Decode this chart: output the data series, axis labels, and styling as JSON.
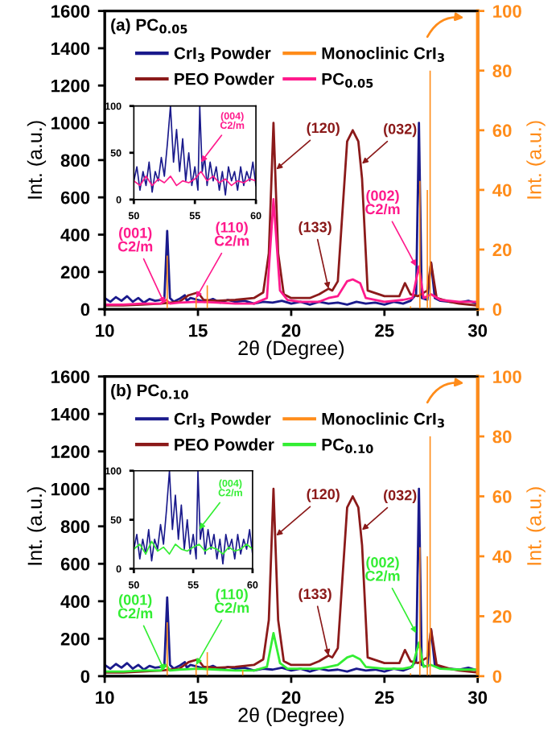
{
  "chart_data": [
    {
      "type": "line",
      "title": "(a) PC$_{0.05}$",
      "xlabel": "2θ (Degree)",
      "ylabel": "Int. (a.u.)",
      "y2label": "Int. (a.u.)",
      "xlim": [
        10,
        30
      ],
      "xticks": [
        10,
        15,
        20,
        25,
        30
      ],
      "ylim": [
        0,
        1600
      ],
      "yticks": [
        0,
        200,
        400,
        600,
        800,
        1000,
        1200,
        1400,
        1600
      ],
      "y2lim": [
        0,
        100
      ],
      "y2ticks": [
        0,
        20,
        40,
        60,
        80,
        100
      ],
      "legend": "top",
      "series": [
        {
          "name": "CrI$_{3}$ Powder",
          "color": "#1a1a8c",
          "x": [
            10,
            10.3,
            10.6,
            10.9,
            11.2,
            11.5,
            11.8,
            12.1,
            12.4,
            12.7,
            13.0,
            13.2,
            13.35,
            13.5,
            13.7,
            14.0,
            14.3,
            14.4,
            14.6,
            15.0,
            15.4,
            15.8,
            16.2,
            16.6,
            17.0,
            17.5,
            18,
            18.5,
            19,
            19.5,
            20,
            20.5,
            21,
            21.5,
            22,
            22.5,
            23,
            23.5,
            24,
            24.5,
            25,
            25.5,
            26,
            26.4,
            26.7,
            26.85,
            27.0,
            27.3,
            27.5,
            27.7,
            28,
            28.5,
            29,
            29.5,
            30
          ],
          "values": [
            60,
            40,
            65,
            45,
            70,
            40,
            60,
            35,
            55,
            45,
            50,
            60,
            420,
            60,
            40,
            55,
            75,
            45,
            60,
            50,
            40,
            55,
            35,
            50,
            40,
            45,
            30,
            40,
            35,
            45,
            30,
            40,
            25,
            40,
            30,
            35,
            25,
            40,
            30,
            35,
            25,
            40,
            30,
            45,
            80,
            1000,
            60,
            50,
            250,
            60,
            45,
            40,
            35,
            45,
            30
          ]
        },
        {
          "name": "Monoclinic CrI$_{3}$",
          "type": "bar",
          "axis": "y2",
          "color": "#ff8c1a",
          "x": [
            13.35,
            14.9,
            15.5,
            17.4,
            26.4,
            26.9,
            27.3,
            27.45
          ],
          "values": [
            18,
            4,
            8,
            null,
            1,
            43,
            40,
            80
          ]
        },
        {
          "name": "PEO Powder",
          "color": "#8b1a1a",
          "x": [
            10,
            11,
            12,
            13,
            14,
            14.5,
            15,
            15.3,
            16,
            17,
            18,
            18.5,
            18.8,
            19.05,
            19.3,
            19.6,
            20,
            21,
            21.5,
            22,
            22.2,
            22.5,
            22.8,
            23.0,
            23.3,
            23.6,
            23.8,
            24.1,
            25,
            25.8,
            26.1,
            26.4,
            26.8,
            27.3,
            27.5,
            27.8,
            28.5,
            29,
            30
          ],
          "values": [
            20,
            20,
            25,
            30,
            40,
            75,
            90,
            50,
            45,
            50,
            60,
            90,
            300,
            1000,
            300,
            80,
            60,
            60,
            80,
            110,
            100,
            150,
            600,
            900,
            960,
            900,
            700,
            100,
            70,
            70,
            140,
            80,
            70,
            100,
            250,
            60,
            40,
            30,
            20
          ]
        },
        {
          "name": "PC$_{0.05}$",
          "color": "#ff1a8c",
          "x": [
            10,
            11,
            12,
            13,
            13.3,
            13.5,
            14,
            15,
            16,
            17,
            18,
            18.7,
            19.05,
            19.4,
            19.8,
            20.5,
            21.5,
            22,
            22.5,
            23,
            23.3,
            23.7,
            24,
            25,
            26,
            26.5,
            26.85,
            27.1,
            27.5,
            28,
            29,
            30
          ],
          "values": [
            25,
            25,
            30,
            30,
            50,
            30,
            35,
            40,
            35,
            30,
            30,
            60,
            590,
            100,
            50,
            40,
            40,
            60,
            70,
            150,
            160,
            140,
            60,
            40,
            50,
            60,
            230,
            60,
            80,
            50,
            40,
            40
          ]
        }
      ],
      "annotations": [
        {
          "text": "(001)\nC2/m",
          "x": 13.2,
          "y": 30
        },
        {
          "text": "(110)\nC2/m",
          "x": 14.9,
          "y": 60
        },
        {
          "text": "(120)",
          "x": 19.2,
          "y": 750
        },
        {
          "text": "(133)",
          "x": 22,
          "y": 110
        },
        {
          "text": "(032)",
          "x": 23.8,
          "y": 780
        },
        {
          "text": "(002)\nC2/m",
          "x": 26.7,
          "y": 230
        }
      ]
    },
    {
      "type": "line",
      "xlim": [
        50,
        60
      ],
      "xticks": [
        50,
        55,
        60
      ],
      "ylim": [
        0,
        100
      ],
      "yticks": [
        0,
        50,
        100
      ],
      "series": [
        {
          "color": "#1a1a8c",
          "x": [
            50,
            50.25,
            50.5,
            50.75,
            51,
            51.25,
            51.5,
            51.75,
            52,
            52.25,
            52.5,
            52.75,
            53,
            53.25,
            53.5,
            53.75,
            54,
            54.25,
            54.5,
            54.75,
            55,
            55.25,
            55.4,
            55.6,
            55.8,
            56,
            56.25,
            56.5,
            56.75,
            57,
            57.25,
            57.5,
            57.75,
            58,
            58.25,
            58.5,
            58.75,
            59,
            59.25,
            59.5,
            59.75,
            60
          ],
          "values": [
            20,
            35,
            10,
            30,
            15,
            40,
            8,
            30,
            20,
            45,
            25,
            60,
            100,
            40,
            75,
            30,
            65,
            20,
            50,
            15,
            35,
            10,
            100,
            30,
            45,
            15,
            40,
            20,
            35,
            10,
            30,
            5,
            35,
            20,
            30,
            10,
            35,
            15,
            30,
            20,
            40,
            15
          ]
        },
        {
          "color": "#ff1a8c",
          "x": [
            50,
            50.5,
            51,
            51.5,
            52,
            52.5,
            53,
            53.5,
            54,
            54.5,
            55,
            55.5,
            56,
            56.5,
            57,
            57.5,
            58,
            58.5,
            59,
            59.5,
            60
          ],
          "values": [
            20,
            15,
            25,
            15,
            22,
            18,
            25,
            15,
            20,
            18,
            22,
            30,
            20,
            25,
            18,
            22,
            15,
            20,
            18,
            22,
            20
          ]
        }
      ],
      "annotations": [
        {
          "text": "(004)\nC2/m",
          "x": 55.5,
          "y": 40
        }
      ]
    },
    {
      "type": "line",
      "title": "(b) PC$_{0.10}$",
      "xlabel": "2θ (Degree)",
      "ylabel": "Int. (a.u.)",
      "y2label": "Int. (a.u.)",
      "xlim": [
        10,
        30
      ],
      "xticks": [
        10,
        15,
        20,
        25,
        30
      ],
      "ylim": [
        0,
        1600
      ],
      "yticks": [
        0,
        200,
        400,
        600,
        800,
        1000,
        1200,
        1400,
        1600
      ],
      "y2lim": [
        0,
        100
      ],
      "y2ticks": [
        0,
        20,
        40,
        60,
        80,
        100
      ],
      "legend": "top",
      "series": [
        {
          "name": "CrI$_{3}$ Powder",
          "color": "#1a1a8c",
          "x": [
            10,
            10.3,
            10.6,
            10.9,
            11.2,
            11.5,
            11.8,
            12.1,
            12.4,
            12.7,
            13.0,
            13.2,
            13.35,
            13.5,
            13.7,
            14.0,
            14.3,
            14.4,
            14.6,
            15.0,
            15.4,
            15.8,
            16.2,
            16.6,
            17.0,
            17.5,
            18,
            18.5,
            19,
            19.5,
            20,
            20.5,
            21,
            21.5,
            22,
            22.5,
            23,
            23.5,
            24,
            24.5,
            25,
            25.5,
            26,
            26.4,
            26.7,
            26.85,
            27.0,
            27.3,
            27.5,
            27.7,
            28,
            28.5,
            29,
            29.5,
            30
          ],
          "values": [
            60,
            40,
            65,
            45,
            70,
            40,
            60,
            35,
            55,
            45,
            50,
            60,
            420,
            60,
            40,
            55,
            75,
            45,
            60,
            50,
            40,
            55,
            35,
            50,
            40,
            45,
            30,
            40,
            35,
            45,
            30,
            40,
            25,
            40,
            30,
            35,
            25,
            40,
            30,
            35,
            25,
            40,
            30,
            45,
            80,
            1000,
            60,
            50,
            250,
            60,
            45,
            40,
            35,
            45,
            30
          ]
        },
        {
          "name": "Monoclinic CrI$_{3}$",
          "type": "bar",
          "axis": "y2",
          "color": "#ff8c1a",
          "x": [
            13.35,
            14.9,
            15.5,
            17.4,
            26.4,
            26.9,
            27.3,
            27.45
          ],
          "values": [
            18,
            4,
            8,
            2,
            1,
            43,
            40,
            80
          ]
        },
        {
          "name": "PEO Powder",
          "color": "#8b1a1a",
          "x": [
            10,
            11,
            12,
            13,
            14,
            14.5,
            15,
            15.3,
            16,
            17,
            18,
            18.5,
            18.8,
            19.05,
            19.3,
            19.6,
            20,
            21,
            21.5,
            22,
            22.2,
            22.5,
            22.8,
            23.0,
            23.3,
            23.6,
            23.8,
            24.1,
            25,
            25.8,
            26.1,
            26.4,
            26.8,
            27.3,
            27.5,
            27.8,
            28.5,
            29,
            30
          ],
          "values": [
            20,
            20,
            25,
            30,
            40,
            75,
            90,
            50,
            45,
            50,
            60,
            90,
            300,
            1000,
            300,
            80,
            60,
            60,
            80,
            110,
            100,
            150,
            600,
            900,
            960,
            900,
            700,
            100,
            70,
            70,
            140,
            80,
            70,
            100,
            250,
            60,
            40,
            30,
            20
          ]
        },
        {
          "name": "PC$_{0.10}$",
          "color": "#33ee33",
          "x": [
            10,
            11,
            12,
            13,
            13.3,
            13.5,
            14,
            15,
            16,
            17,
            18,
            18.7,
            19.05,
            19.4,
            19.8,
            20.5,
            21.5,
            22,
            22.5,
            23,
            23.3,
            23.7,
            24,
            25,
            26,
            26.5,
            26.85,
            27.1,
            27.5,
            28,
            29,
            30
          ],
          "values": [
            25,
            25,
            30,
            30,
            60,
            30,
            35,
            40,
            35,
            30,
            30,
            50,
            230,
            70,
            40,
            40,
            40,
            50,
            60,
            100,
            110,
            90,
            50,
            40,
            40,
            50,
            180,
            50,
            60,
            40,
            35,
            35
          ]
        }
      ],
      "annotations": [
        {
          "text": "(001)\nC2/m",
          "x": 13.2,
          "y": 30
        },
        {
          "text": "(110)\nC2/m",
          "x": 14.9,
          "y": 60
        },
        {
          "text": "(120)",
          "x": 19.2,
          "y": 750
        },
        {
          "text": "(133)",
          "x": 22,
          "y": 110
        },
        {
          "text": "(032)",
          "x": 23.8,
          "y": 780
        },
        {
          "text": "(002)\nC2/m",
          "x": 26.7,
          "y": 230
        }
      ]
    },
    {
      "type": "line",
      "xlim": [
        50,
        60
      ],
      "xticks": [
        50,
        55,
        60
      ],
      "ylim": [
        0,
        100
      ],
      "yticks": [
        0,
        50,
        100
      ],
      "series": [
        {
          "color": "#1a1a8c",
          "x": [
            50,
            50.25,
            50.5,
            50.75,
            51,
            51.25,
            51.5,
            51.75,
            52,
            52.25,
            52.5,
            52.75,
            53,
            53.25,
            53.5,
            53.75,
            54,
            54.25,
            54.5,
            54.75,
            55,
            55.25,
            55.4,
            55.6,
            55.8,
            56,
            56.25,
            56.5,
            56.75,
            57,
            57.25,
            57.5,
            57.75,
            58,
            58.25,
            58.5,
            58.75,
            59,
            59.25,
            59.5,
            59.75,
            60
          ],
          "values": [
            20,
            35,
            10,
            30,
            15,
            40,
            8,
            30,
            20,
            45,
            25,
            60,
            100,
            40,
            75,
            30,
            65,
            20,
            50,
            15,
            35,
            10,
            100,
            30,
            45,
            15,
            40,
            20,
            35,
            10,
            30,
            5,
            35,
            20,
            30,
            10,
            35,
            15,
            30,
            20,
            40,
            15
          ]
        },
        {
          "color": "#33ee33",
          "x": [
            50,
            50.5,
            51,
            51.5,
            52,
            52.5,
            53,
            53.5,
            54,
            54.5,
            55,
            55.5,
            56,
            56.5,
            57,
            57.5,
            58,
            58.5,
            59,
            59.5,
            60
          ],
          "values": [
            20,
            25,
            15,
            28,
            18,
            22,
            15,
            25,
            20,
            18,
            22,
            25,
            18,
            22,
            20,
            15,
            22,
            18,
            20,
            25,
            20
          ]
        }
      ],
      "annotations": [
        {
          "text": "(004)\nC2/m",
          "x": 55.5,
          "y": 40
        }
      ]
    }
  ]
}
